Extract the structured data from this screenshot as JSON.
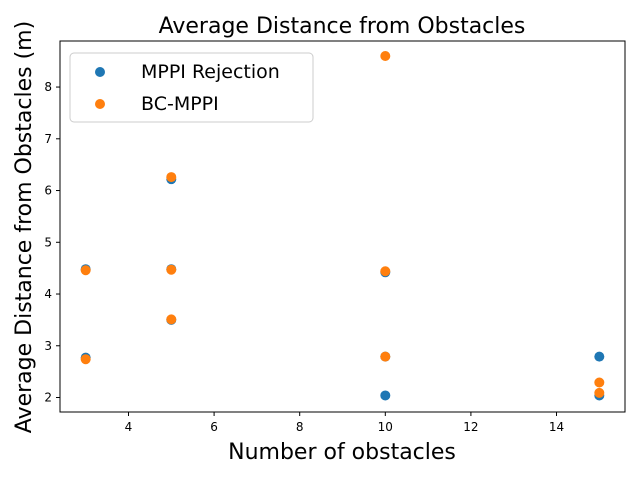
{
  "chart_data": {
    "type": "scatter",
    "title": "Average Distance from Obstacles",
    "xlabel": "Number of obstacles",
    "ylabel": "Average Distance from Obstacles (m)",
    "xlim": [
      2.4,
      15.6
    ],
    "ylim": [
      1.72,
      8.89
    ],
    "xticks": [
      4,
      6,
      8,
      10,
      12,
      14
    ],
    "yticks": [
      2,
      3,
      4,
      5,
      6,
      7,
      8
    ],
    "legend_position": "top-left",
    "series": [
      {
        "name": "MPPI Rejection",
        "color": "#1f77b4",
        "points": [
          {
            "x": 3,
            "y": 2.77
          },
          {
            "x": 3,
            "y": 4.48
          },
          {
            "x": 5,
            "y": 3.5
          },
          {
            "x": 5,
            "y": 4.48
          },
          {
            "x": 5,
            "y": 6.22
          },
          {
            "x": 10,
            "y": 2.04
          },
          {
            "x": 10,
            "y": 2.79
          },
          {
            "x": 10,
            "y": 4.42
          },
          {
            "x": 15,
            "y": 2.04
          },
          {
            "x": 15,
            "y": 2.79
          }
        ]
      },
      {
        "name": "BC-MPPI",
        "color": "#ff7f0e",
        "points": [
          {
            "x": 3,
            "y": 2.74
          },
          {
            "x": 3,
            "y": 4.46
          },
          {
            "x": 5,
            "y": 3.51
          },
          {
            "x": 5,
            "y": 4.47
          },
          {
            "x": 5,
            "y": 6.26
          },
          {
            "x": 10,
            "y": 2.79
          },
          {
            "x": 10,
            "y": 4.44
          },
          {
            "x": 10,
            "y": 8.6
          },
          {
            "x": 15,
            "y": 2.09
          },
          {
            "x": 15,
            "y": 2.29
          }
        ]
      }
    ]
  }
}
